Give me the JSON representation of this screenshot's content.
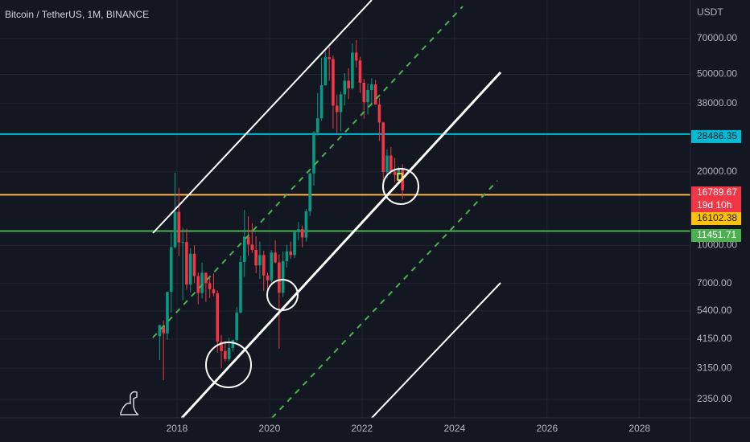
{
  "chart_data": {
    "type": "candlestick",
    "title": "Bitcoin / TetherUS, 1M, BINANCE",
    "y_axis_label": "USDT",
    "log_scale": true,
    "grid": true,
    "up_color": "#089981",
    "down_color": "#f23645",
    "x": [
      "2017-08",
      "2017-09",
      "2017-10",
      "2017-11",
      "2017-12",
      "2018-01",
      "2018-02",
      "2018-03",
      "2018-04",
      "2018-05",
      "2018-06",
      "2018-07",
      "2018-08",
      "2018-09",
      "2018-10",
      "2018-11",
      "2018-12",
      "2019-01",
      "2019-02",
      "2019-03",
      "2019-04",
      "2019-05",
      "2019-06",
      "2019-07",
      "2019-08",
      "2019-09",
      "2019-10",
      "2019-11",
      "2019-12",
      "2020-01",
      "2020-02",
      "2020-03",
      "2020-04",
      "2020-05",
      "2020-06",
      "2020-07",
      "2020-08",
      "2020-09",
      "2020-10",
      "2020-11",
      "2020-12",
      "2021-01",
      "2021-02",
      "2021-03",
      "2021-04",
      "2021-05",
      "2021-06",
      "2021-07",
      "2021-08",
      "2021-09",
      "2021-10",
      "2021-11",
      "2021-12",
      "2022-01",
      "2022-02",
      "2022-03",
      "2022-04",
      "2022-05",
      "2022-06",
      "2022-07",
      "2022-08",
      "2022-09",
      "2022-10",
      "2022-11"
    ],
    "open": [
      4261,
      4689,
      4378,
      6463,
      9838,
      13716,
      10285,
      10326,
      6923,
      9246,
      7494,
      6391,
      7730,
      7011,
      6626,
      6371,
      4041,
      3702,
      3434,
      3813,
      4106,
      5321,
      8555,
      10855,
      10085,
      9590,
      8289,
      9140,
      7540,
      7195,
      9352,
      8523,
      6410,
      8620,
      9448,
      9138,
      11335,
      11649,
      10776,
      13791,
      19695,
      28923,
      33092,
      45135,
      58740,
      57694,
      37253,
      35045,
      41461,
      47100,
      43824,
      61300,
      56950,
      46216,
      38466,
      43160,
      45510,
      37630,
      31801,
      19942,
      23293,
      20050,
      19423,
      20490
    ],
    "high": [
      4745,
      4939,
      6470,
      11300,
      19798,
      17176,
      11786,
      11710,
      9759,
      10020,
      7760,
      8506,
      7750,
      7410,
      7680,
      6555,
      4313,
      4069,
      4198,
      4120,
      5600,
      9074,
      13970,
      13147,
      12325,
      10905,
      10370,
      9516,
      7750,
      9578,
      10500,
      9189,
      9468,
      10067,
      10380,
      11444,
      12468,
      12050,
      14100,
      19863,
      29300,
      41950,
      58352,
      61844,
      64854,
      59600,
      41330,
      42448,
      50500,
      52920,
      67000,
      69000,
      59053,
      47990,
      45821,
      48189,
      47444,
      40023,
      31986,
      24668,
      25211,
      22799,
      20988,
      21473
    ],
    "low": [
      3400,
      2817,
      4110,
      5325,
      9722,
      9035,
      5968,
      6600,
      6430,
      7032,
      5750,
      6070,
      5880,
      6100,
      6200,
      3652,
      3156,
      3349,
      3373,
      3689,
      4034,
      5273,
      7444,
      9071,
      9320,
      7710,
      7300,
      6515,
      6435,
      6871,
      8445,
      3782,
      6150,
      8117,
      8833,
      8893,
      10518,
      9825,
      10375,
      13195,
      17572,
      28130,
      32296,
      44950,
      47044,
      30000,
      28805,
      29278,
      37332,
      39600,
      43283,
      53256,
      42000,
      32917,
      34322,
      37155,
      37578,
      26700,
      17622,
      18781,
      19600,
      18125,
      18190,
      15476
    ],
    "close": [
      4724,
      4378,
      6463,
      9838,
      13716,
      10285,
      10326,
      6923,
      9246,
      7494,
      6391,
      7730,
      7011,
      6626,
      6371,
      4041,
      3702,
      3434,
      3813,
      4106,
      5321,
      8555,
      10855,
      10085,
      9590,
      8289,
      9140,
      7540,
      7195,
      9352,
      8523,
      6410,
      8620,
      9448,
      9138,
      11335,
      11649,
      10776,
      13791,
      19695,
      28923,
      33092,
      45135,
      58740,
      57694,
      37253,
      35045,
      41461,
      47100,
      43824,
      61300,
      56950,
      46216,
      38466,
      43160,
      45510,
      37630,
      31801,
      19942,
      23293,
      20050,
      19423,
      20490,
      16789.67
    ],
    "countdown": "19d 10h",
    "horizontal_lines": [
      {
        "value": 28486.35,
        "color": "#00bcd4"
      },
      {
        "value": 16102.38,
        "color": "#ffb74d"
      },
      {
        "value": 11451.71,
        "color": "#4caf50"
      }
    ],
    "xlim": [
      2014.174,
      2029.1
    ],
    "xticks": [
      2018,
      2020,
      2022,
      2024,
      2026,
      2028
    ],
    "ylim": [
      1975,
      100600
    ],
    "yticks": [
      {
        "value": 70000,
        "label": "70000.00"
      },
      {
        "value": 50000,
        "label": "50000.00"
      },
      {
        "value": 38000,
        "label": "38000.00"
      },
      {
        "value": 20000,
        "label": "20000.00"
      },
      {
        "value": 10000,
        "label": "10000.00"
      },
      {
        "value": 7000,
        "label": "7000.00"
      },
      {
        "value": 5400,
        "label": "5400.00"
      },
      {
        "value": 4150,
        "label": "4150.00"
      },
      {
        "value": 3150,
        "label": "3150.00"
      },
      {
        "value": 2350,
        "label": "2350.00"
      }
    ]
  }
}
